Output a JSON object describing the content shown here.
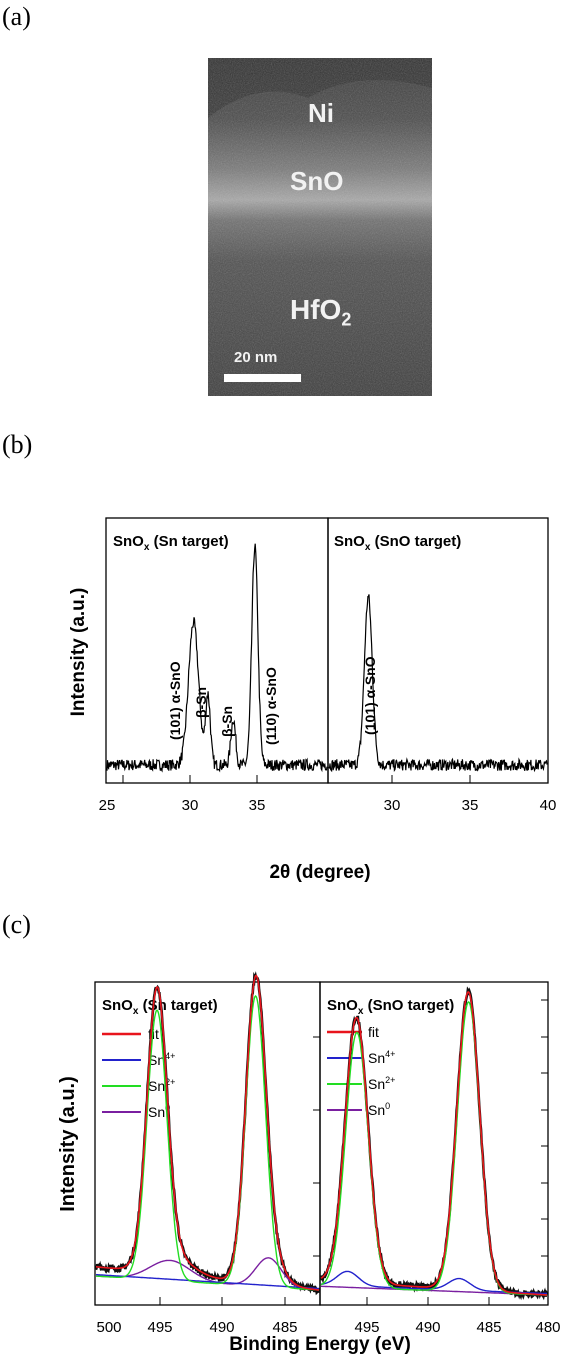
{
  "panels": {
    "a": {
      "label": "(a)",
      "layers": {
        "top": "Ni",
        "middle": "SnO",
        "bottom": "HfO",
        "bottom_sub": "2"
      },
      "scale_bar": "20 nm"
    },
    "b": {
      "label": "(b)",
      "ylabel": "Intensity (a.u.)",
      "xlabel": "2θ  (degree)",
      "left": {
        "title": "SnO",
        "title_sub": "x",
        "title_rest": " (Sn target)",
        "annotations": [
          "(101) α-SnO",
          "β-Sn",
          "β-Sn",
          "(110) α-SnO"
        ]
      },
      "right": {
        "title": "SnO",
        "title_sub": "x",
        "title_rest": " (SnO target)",
        "annotations": [
          "(101) α-SnO"
        ]
      },
      "xticks_left": [
        "25",
        "30",
        "35"
      ],
      "xticks_right": [
        "30",
        "35",
        "40"
      ]
    },
    "c": {
      "label": "(c)",
      "ylabel": "Intensity (a.u.)",
      "xlabel": "Binding Energy (eV)",
      "left": {
        "title": "SnO",
        "title_sub": "x",
        "title_rest": " (Sn target)"
      },
      "right": {
        "title": "SnO",
        "title_sub": "x",
        "title_rest": " (SnO target)"
      },
      "legend": [
        {
          "name": "fit",
          "sup": "",
          "color": "#e8141c"
        },
        {
          "name": "Sn",
          "sup": "4+",
          "color": "#2222cc"
        },
        {
          "name": "Sn",
          "sup": "2+",
          "color": "#22dd22"
        },
        {
          "name": "Sn",
          "sup": "0",
          "color": "#7a1fa0"
        }
      ],
      "xticks_left": [
        "500",
        "495",
        "490",
        "485"
      ],
      "xticks_right": [
        "495",
        "490",
        "485",
        "480"
      ]
    }
  },
  "chart_data": [
    {
      "type": "line",
      "name": "XRD SnOx (Sn target)",
      "x_range": [
        25,
        37.2
      ],
      "peaks": [
        {
          "x": 29.8,
          "height": 0.62,
          "width": 0.28
        },
        {
          "x": 30.6,
          "height": 0.3,
          "width": 0.13
        },
        {
          "x": 32.0,
          "height": 0.2,
          "width": 0.13
        },
        {
          "x": 33.2,
          "height": 0.95,
          "width": 0.17
        }
      ]
    },
    {
      "type": "line",
      "name": "XRD SnOx (SnO target)",
      "x_range": [
        27.8,
        40
      ],
      "peaks": [
        {
          "x": 30.0,
          "height": 0.73,
          "width": 0.22
        }
      ]
    },
    {
      "type": "line",
      "name": "XPS SnOx (Sn target)",
      "x_range": [
        500,
        481
      ],
      "components": {
        "Sn2+": [
          {
            "x": 494.8,
            "height": 0.93,
            "width": 0.85
          },
          {
            "x": 486.4,
            "height": 1.0,
            "width": 0.85
          }
        ],
        "Sn0": [
          {
            "x": 493.7,
            "height": 0.07,
            "width": 1.7
          },
          {
            "x": 485.3,
            "height": 0.1,
            "width": 1.1
          }
        ]
      }
    },
    {
      "type": "line",
      "name": "XPS SnOx (SnO target)",
      "x_range": [
        497,
        480
      ],
      "components": {
        "Sn2+": [
          {
            "x": 494.3,
            "height": 0.88,
            "width": 0.85
          },
          {
            "x": 485.9,
            "height": 1.0,
            "width": 0.85
          }
        ],
        "Sn4+": [
          {
            "x": 495.0,
            "height": 0.05,
            "width": 0.8
          },
          {
            "x": 486.6,
            "height": 0.04,
            "width": 0.8
          }
        ]
      }
    }
  ]
}
